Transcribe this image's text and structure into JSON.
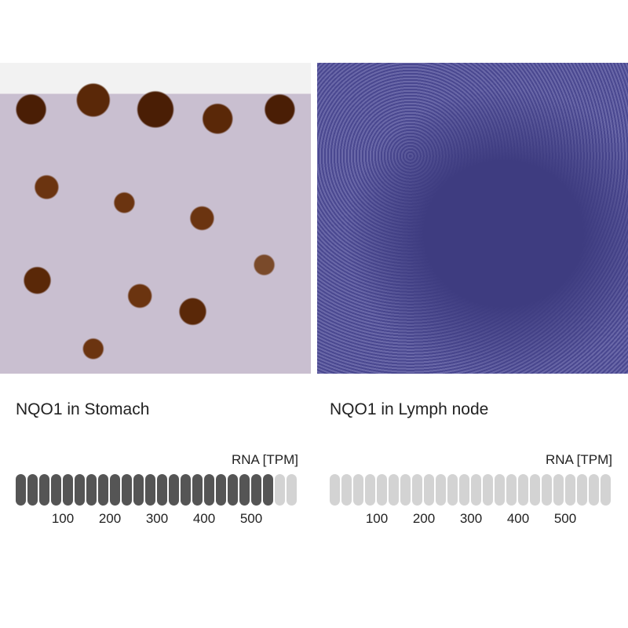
{
  "panels": [
    {
      "title": "NQO1 in Stomach",
      "unit": "RNA [TPM]",
      "rna_tpm": 550,
      "filled_bars": 22,
      "total_bars": 24,
      "image": "stomach tissue IHC",
      "filled_color": "#555555",
      "empty_color": "#d3d3d3"
    },
    {
      "title": "NQO1 in Lymph node",
      "unit": "RNA [TPM]",
      "rna_tpm": 0,
      "filled_bars": 0,
      "total_bars": 24,
      "image": "lymph node tissue IHC",
      "filled_color": "#555555",
      "empty_color": "#d3d3d3"
    }
  ],
  "ticks": [
    "100",
    "200",
    "300",
    "400",
    "500"
  ]
}
